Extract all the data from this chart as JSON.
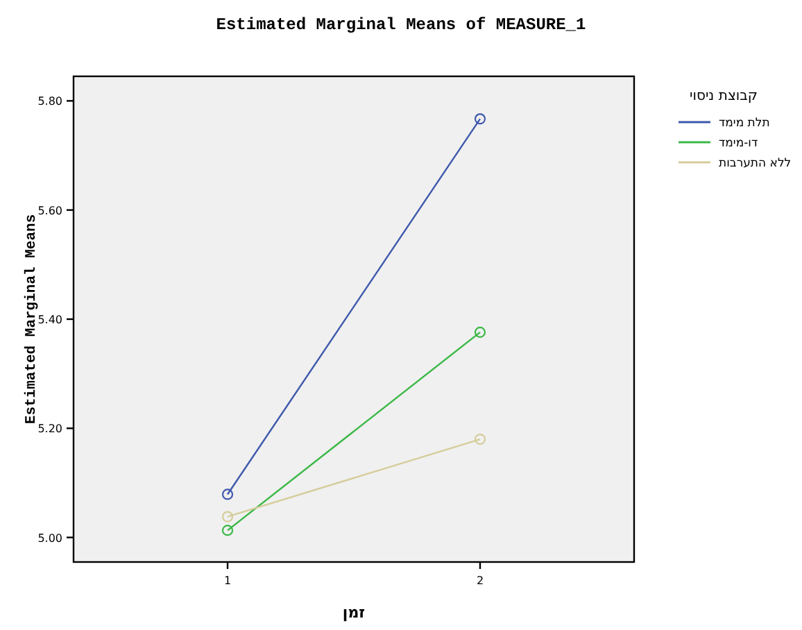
{
  "chart_data": {
    "type": "line",
    "title": "Estimated Marginal Means of MEASURE_1",
    "xlabel": "זמן",
    "ylabel": "Estimated Marginal Means",
    "legend_title": "קבוצת ניסוי",
    "x": [
      1,
      2
    ],
    "xlim": [
      0.39,
      2.61
    ],
    "xticks": [
      1,
      2
    ],
    "ylim": [
      4.955,
      5.845
    ],
    "yticks": [
      {
        "value": 5.0,
        "label": "5.00"
      },
      {
        "value": 5.2,
        "label": "5.20"
      },
      {
        "value": 5.4,
        "label": "5.40"
      },
      {
        "value": 5.6,
        "label": "5.60"
      },
      {
        "value": 5.8,
        "label": "5.80"
      }
    ],
    "marker": "circle",
    "line_style": "solid",
    "legend": "top right",
    "grid": false,
    "series": [
      {
        "name": "תלת מימד",
        "color": "#3e58ac",
        "values": [
          5.079,
          5.767
        ]
      },
      {
        "name": "דו-מימד",
        "color": "#3cb846",
        "values": [
          5.013,
          5.376
        ]
      },
      {
        "name": "ללא התערבות",
        "color": "#d5cd9b",
        "values": [
          5.038,
          5.18
        ]
      }
    ]
  }
}
